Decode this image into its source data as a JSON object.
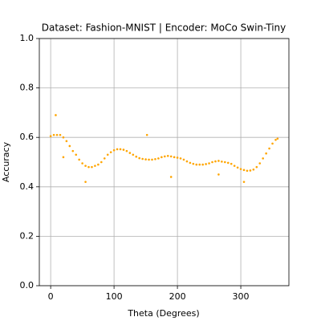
{
  "chart_data": {
    "type": "scatter",
    "title": "Dataset: Fashion-MNIST | Encoder: MoCo Swin-Tiny",
    "xlabel": "Theta (Degrees)",
    "ylabel": "Accuracy",
    "color": "#ffa500",
    "x": [
      0,
      5,
      10,
      15,
      20,
      25,
      30,
      35,
      40,
      45,
      50,
      55,
      60,
      65,
      70,
      75,
      80,
      85,
      90,
      95,
      100,
      105,
      110,
      115,
      120,
      125,
      130,
      135,
      140,
      145,
      150,
      155,
      160,
      165,
      170,
      175,
      180,
      185,
      190,
      195,
      200,
      205,
      210,
      215,
      220,
      225,
      230,
      235,
      240,
      245,
      250,
      255,
      260,
      265,
      270,
      275,
      280,
      285,
      290,
      295,
      300,
      305,
      310,
      315,
      320,
      325,
      330,
      335,
      340,
      345,
      350,
      355,
      358,
      8,
      20,
      55,
      152,
      190,
      265,
      305
    ],
    "y": [
      0.605,
      0.61,
      0.61,
      0.61,
      0.6,
      0.585,
      0.565,
      0.545,
      0.53,
      0.51,
      0.495,
      0.485,
      0.48,
      0.48,
      0.485,
      0.49,
      0.5,
      0.515,
      0.53,
      0.54,
      0.548,
      0.552,
      0.552,
      0.55,
      0.545,
      0.537,
      0.53,
      0.522,
      0.516,
      0.513,
      0.511,
      0.51,
      0.51,
      0.512,
      0.515,
      0.52,
      0.523,
      0.525,
      0.523,
      0.52,
      0.518,
      0.515,
      0.51,
      0.503,
      0.497,
      0.493,
      0.49,
      0.49,
      0.49,
      0.492,
      0.495,
      0.5,
      0.503,
      0.505,
      0.502,
      0.5,
      0.497,
      0.493,
      0.485,
      0.478,
      0.472,
      0.468,
      0.465,
      0.466,
      0.47,
      0.48,
      0.495,
      0.515,
      0.535,
      0.555,
      0.575,
      0.59,
      0.595,
      0.69,
      0.52,
      0.42,
      0.61,
      0.44,
      0.45,
      0.42
    ],
    "xlim": [
      -17.9,
      375.9
    ],
    "xticks": [
      0,
      100,
      200,
      300
    ],
    "ylim": [
      0,
      1
    ],
    "yticks": [
      {
        "value": 0,
        "label": "0.0"
      },
      {
        "value": 0.2,
        "label": "0.2"
      },
      {
        "value": 0.4,
        "label": "0.4"
      },
      {
        "value": 0.6,
        "label": "0.6"
      },
      {
        "value": 0.8,
        "label": "0.8"
      },
      {
        "value": 1,
        "label": "1.0"
      }
    ],
    "grid": true
  }
}
